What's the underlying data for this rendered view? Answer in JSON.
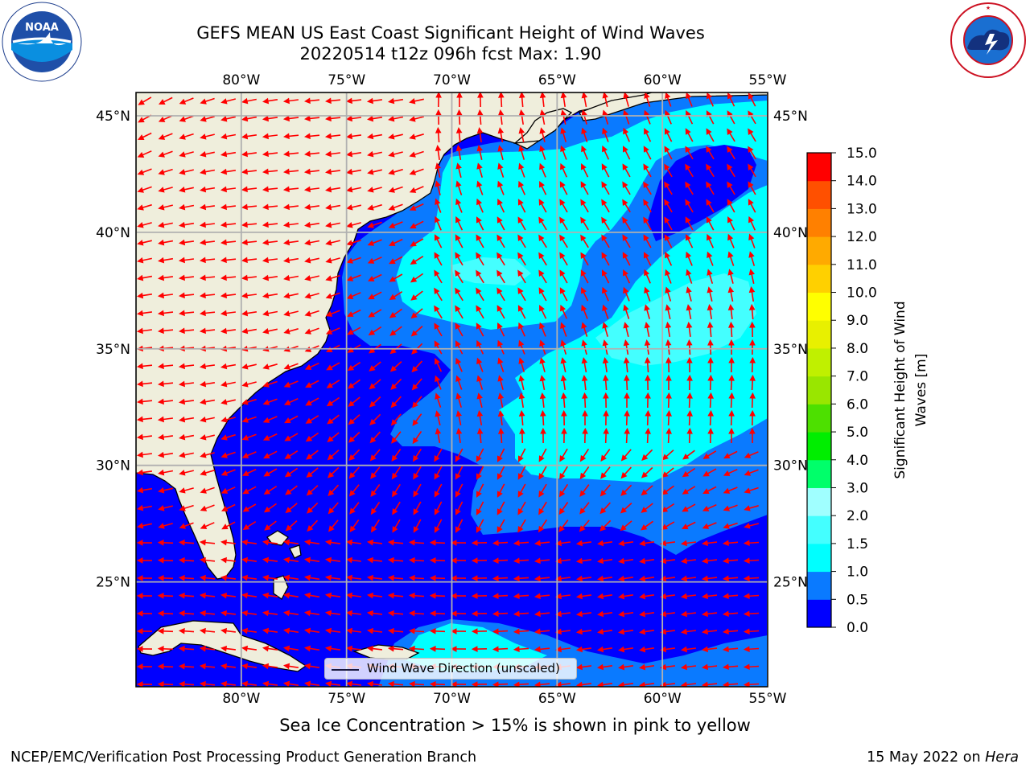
{
  "header": {
    "title_line1": "GEFS MEAN US East Coast Significant Height of Wind Waves",
    "title_line2": "20220514 t12z 096h fcst   Max: 1.90"
  },
  "logos": {
    "left": {
      "name": "noaa-logo",
      "text": "NOAA",
      "ring_text": "NATIONAL OCEANIC AND ATMOSPHERIC ADMINISTRATION · U.S. DEPARTMENT OF COMMERCE"
    },
    "right": {
      "name": "nws-logo",
      "ring_text": "NATIONAL WEATHER SERVICE"
    }
  },
  "map": {
    "lon_labels": [
      "80°W",
      "75°W",
      "70°W",
      "65°W",
      "60°W",
      "55°W"
    ],
    "lat_labels": [
      "45°N",
      "40°N",
      "35°N",
      "30°N",
      "25°N"
    ],
    "lon_values": [
      -80,
      -75,
      -70,
      -65,
      -60,
      -55
    ],
    "lat_values": [
      45,
      40,
      35,
      30,
      25
    ],
    "extent": {
      "lon_min": -85,
      "lon_max": -55,
      "lat_min": 20.5,
      "lat_max": 46
    },
    "land_color": "#efeedc",
    "grid_color": "#b0b0b0",
    "arrow_color": "#ff0000",
    "legend_label": "Wind Wave Direction (unscaled)"
  },
  "colorbar": {
    "label": "Significant Height of Wind Waves [m]",
    "levels": [
      0.0,
      0.5,
      1.0,
      1.5,
      2.0,
      3.0,
      4.0,
      5.0,
      6.0,
      7.0,
      8.0,
      9.0,
      10.0,
      11.0,
      12.0,
      13.0,
      14.0,
      15.0
    ],
    "tick_labels": [
      "0.0",
      "0.5",
      "1.0",
      "1.5",
      "2.0",
      "3.0",
      "4.0",
      "5.0",
      "6.0",
      "7.0",
      "8.0",
      "9.0",
      "10.0",
      "11.0",
      "12.0",
      "13.0",
      "14.0",
      "15.0"
    ],
    "colors": [
      "#0000ff",
      "#0a7aff",
      "#00ffff",
      "#44ffff",
      "#a0ffff",
      "#00ff6a",
      "#00ee00",
      "#4de000",
      "#99e600",
      "#c0f000",
      "#e8f000",
      "#ffff00",
      "#ffd000",
      "#ffaa00",
      "#ff8000",
      "#ff5000",
      "#ff0000"
    ]
  },
  "footer": {
    "subtitle": "Sea Ice Concentration > 15% is shown in pink to yellow",
    "credit": "NCEP/EMC/Verification Post Processing Product Generation Branch",
    "date": "15 May 2022 on",
    "machine": "Hera"
  }
}
